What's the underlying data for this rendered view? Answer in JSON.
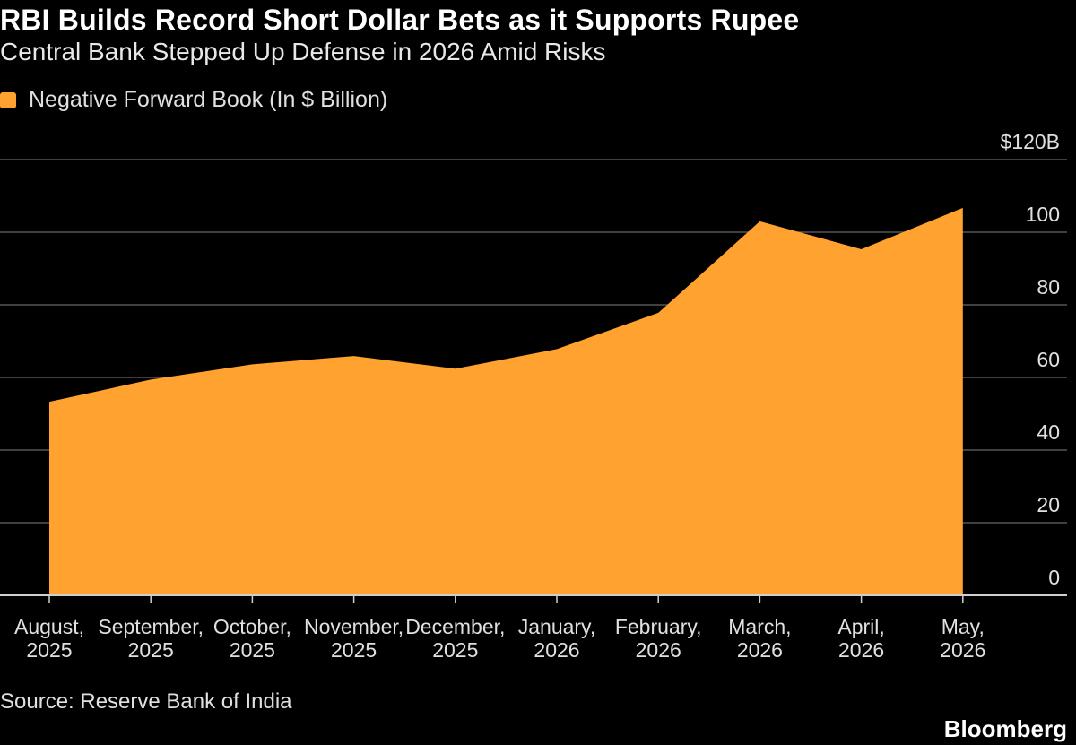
{
  "chart_data": {
    "type": "area",
    "title": "RBI Builds Record Short Dollar Bets as it Supports Rupee",
    "subtitle": "Central Bank Stepped Up Defense in 2026 Amid Risks",
    "categories": [
      [
        "August,",
        "2025"
      ],
      [
        "September,",
        "2025"
      ],
      [
        "October,",
        "2025"
      ],
      [
        "November,",
        "2025"
      ],
      [
        "December,",
        "2025"
      ],
      [
        "January,",
        "2026"
      ],
      [
        "February,",
        "2026"
      ],
      [
        "March,",
        "2026"
      ],
      [
        "April,",
        "2026"
      ],
      [
        "May,",
        "2026"
      ]
    ],
    "series": [
      {
        "name": "Negative Forward Book (In $ Billion)",
        "color": "#ffa22f",
        "values": [
          53.3,
          59.4,
          63.6,
          65.9,
          62.4,
          67.8,
          77.8,
          103.0,
          95.3,
          106.7
        ]
      }
    ],
    "ylim": [
      0,
      120
    ],
    "y_ticks": [
      0,
      20,
      40,
      60,
      80,
      100,
      120
    ],
    "y_tick_labels": [
      "0",
      "20",
      "40",
      "60",
      "80",
      "100",
      "$120B"
    ],
    "y_axis_position": "right",
    "grid": true,
    "legend_position": "top-left"
  },
  "source": "Source: Reserve Bank of India",
  "brand": "Bloomberg"
}
